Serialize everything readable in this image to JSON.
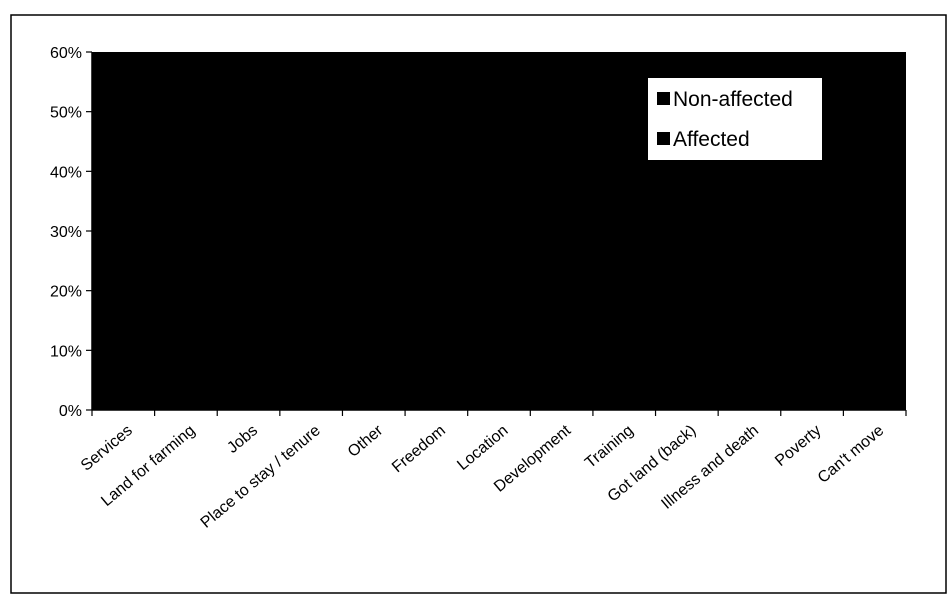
{
  "chart_data": {
    "type": "bar",
    "title": "",
    "xlabel": "",
    "ylabel": "",
    "ylim": [
      0,
      60
    ],
    "yticks": [
      "0%",
      "10%",
      "20%",
      "30%",
      "40%",
      "50%",
      "60%"
    ],
    "grid": false,
    "legend_placement": "top-right",
    "categories": [
      "Services",
      "Land for farming",
      "Jobs",
      "Place to stay / tenure",
      "Other",
      "Freedom",
      "Location",
      "Development",
      "Training",
      "Got land (back)",
      "Illness and death",
      "Poverty",
      "Can't move"
    ],
    "series": [
      {
        "name": "Non-affected",
        "color": "#000000",
        "values": [
          null,
          null,
          null,
          null,
          null,
          null,
          null,
          null,
          null,
          null,
          null,
          null,
          null
        ]
      },
      {
        "name": "Affected",
        "color": "#000000",
        "values": [
          null,
          null,
          null,
          null,
          null,
          null,
          null,
          null,
          null,
          null,
          null,
          null,
          null
        ]
      }
    ],
    "plot_background": "#000000"
  }
}
